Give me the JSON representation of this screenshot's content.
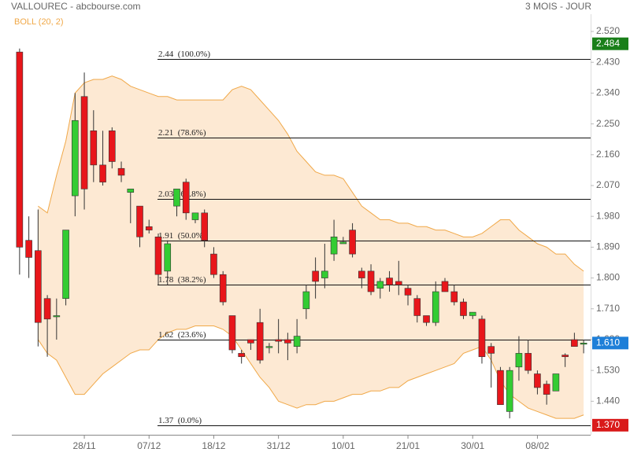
{
  "chart_data": {
    "type": "candlestick",
    "title": "VALLOUREC - abcbourse.com",
    "subtitle": "3 MOIS - JOUR",
    "indicator_label": "BOLL (20, 2)",
    "categories": [
      null,
      null,
      null,
      null,
      null,
      null,
      null,
      "28/11",
      null,
      null,
      null,
      null,
      null,
      null,
      "07/12",
      null,
      null,
      null,
      null,
      null,
      null,
      "18/12",
      null,
      null,
      null,
      null,
      null,
      null,
      "31/12",
      null,
      null,
      null,
      null,
      null,
      null,
      "10/01",
      null,
      null,
      null,
      null,
      null,
      null,
      "21/01",
      null,
      null,
      null,
      null,
      null,
      null,
      "30/01",
      null,
      null,
      null,
      null,
      null,
      null,
      "08/02",
      null,
      null,
      null,
      null,
      null
    ],
    "open": [
      2.46,
      1.91,
      1.88,
      1.74,
      1.69,
      1.74,
      2.04,
      2.33,
      2.23,
      2.13,
      2.23,
      2.12,
      2.05,
      2.01,
      1.95,
      1.92,
      1.82,
      2.01,
      2.08,
      1.97,
      1.99,
      1.87,
      1.81,
      1.69,
      1.58,
      1.62,
      1.67,
      1.597,
      1.62,
      1.62,
      1.6,
      1.71,
      1.82,
      1.8,
      1.87,
      1.9,
      1.94,
      1.82,
      1.82,
      1.77,
      1.8,
      1.79,
      1.77,
      1.74,
      1.69,
      1.67,
      1.79,
      1.76,
      1.73,
      1.69,
      1.68,
      1.6,
      1.53,
      1.41,
      1.54,
      1.58,
      1.52,
      1.49,
      1.47,
      1.575,
      1.62,
      1.61
    ],
    "high": [
      2.47,
      1.98,
      2.0,
      1.75,
      1.74,
      1.94,
      2.34,
      2.4,
      2.29,
      2.23,
      2.24,
      2.14,
      2.06,
      2.01,
      1.97,
      1.93,
      1.91,
      2.06,
      2.09,
      1.99,
      2.0,
      1.89,
      1.82,
      1.69,
      1.59,
      1.62,
      1.71,
      1.61,
      1.68,
      1.64,
      1.68,
      1.78,
      1.86,
      1.9,
      1.97,
      1.92,
      1.96,
      1.83,
      1.84,
      1.8,
      1.82,
      1.85,
      1.78,
      1.75,
      1.69,
      1.79,
      1.8,
      1.78,
      1.74,
      1.7,
      1.69,
      1.61,
      1.54,
      1.54,
      1.63,
      1.62,
      1.53,
      1.5,
      1.52,
      1.58,
      1.64,
      1.62
    ],
    "low": [
      1.81,
      1.8,
      1.6,
      1.57,
      1.62,
      1.72,
      1.98,
      2.0,
      2.08,
      2.07,
      2.12,
      2.08,
      1.96,
      1.89,
      1.93,
      1.78,
      1.78,
      1.98,
      1.97,
      1.96,
      1.89,
      1.8,
      1.72,
      1.58,
      1.55,
      1.59,
      1.55,
      1.58,
      1.58,
      1.56,
      1.58,
      1.68,
      1.74,
      1.77,
      1.85,
      1.9,
      1.86,
      1.77,
      1.75,
      1.74,
      1.76,
      1.75,
      1.72,
      1.67,
      1.66,
      1.66,
      1.76,
      1.72,
      1.68,
      1.68,
      1.55,
      1.48,
      1.43,
      1.39,
      1.5,
      1.52,
      1.46,
      1.43,
      1.47,
      1.54,
      1.6,
      1.58
    ],
    "close": [
      1.89,
      1.86,
      1.67,
      1.68,
      1.69,
      1.94,
      2.26,
      2.06,
      2.13,
      2.08,
      2.14,
      2.1,
      2.06,
      1.92,
      1.94,
      1.81,
      1.9,
      2.06,
      1.99,
      1.99,
      1.91,
      1.81,
      1.73,
      1.59,
      1.57,
      1.61,
      1.56,
      1.6,
      1.615,
      1.61,
      1.63,
      1.76,
      1.79,
      1.82,
      1.92,
      1.905,
      1.87,
      1.8,
      1.76,
      1.79,
      1.78,
      1.78,
      1.75,
      1.69,
      1.67,
      1.76,
      1.76,
      1.73,
      1.69,
      1.7,
      1.57,
      1.58,
      1.43,
      1.53,
      1.58,
      1.53,
      1.48,
      1.46,
      1.52,
      1.57,
      1.6,
      1.61
    ],
    "up_color": "#33cc33",
    "down_color": "#e8161b",
    "band_upper": [
      null,
      null,
      2.01,
      1.99,
      2.1,
      2.2,
      2.34,
      2.37,
      2.38,
      2.38,
      2.39,
      2.38,
      2.36,
      2.35,
      2.34,
      2.33,
      2.33,
      2.32,
      2.32,
      2.32,
      2.32,
      2.32,
      2.32,
      2.35,
      2.36,
      2.35,
      2.32,
      2.29,
      2.26,
      2.22,
      2.17,
      2.14,
      2.11,
      2.1,
      2.1,
      2.09,
      2.05,
      2.01,
      1.99,
      1.97,
      1.97,
      1.96,
      1.96,
      1.95,
      1.95,
      1.94,
      1.94,
      1.93,
      1.92,
      1.92,
      1.93,
      1.95,
      1.97,
      1.97,
      1.94,
      1.92,
      1.9,
      1.89,
      1.87,
      1.87,
      1.84,
      1.82
    ],
    "band_lower": [
      null,
      null,
      1.62,
      1.58,
      1.56,
      1.51,
      1.46,
      1.46,
      1.49,
      1.52,
      1.54,
      1.56,
      1.58,
      1.59,
      1.59,
      1.62,
      1.64,
      1.65,
      1.65,
      1.66,
      1.66,
      1.66,
      1.65,
      1.63,
      1.59,
      1.55,
      1.51,
      1.48,
      1.44,
      1.43,
      1.42,
      1.43,
      1.43,
      1.44,
      1.44,
      1.45,
      1.46,
      1.46,
      1.47,
      1.47,
      1.48,
      1.48,
      1.5,
      1.51,
      1.52,
      1.53,
      1.54,
      1.55,
      1.58,
      1.59,
      1.6,
      1.56,
      1.5,
      1.46,
      1.44,
      1.42,
      1.41,
      1.4,
      1.39,
      1.39,
      1.39,
      1.4
    ],
    "band_color": "#f0a848",
    "band_fill": "#fde9d3",
    "fib_levels": [
      {
        "value": 2.44,
        "label": "2.44  (100.0%)"
      },
      {
        "value": 2.21,
        "label": "2.21  (78.6%)"
      },
      {
        "value": 2.03,
        "label": "2.03  (61.8%)"
      },
      {
        "value": 1.91,
        "label": "1.91  (50.0%)"
      },
      {
        "value": 1.78,
        "label": "1.78  (38.2%)"
      },
      {
        "value": 1.62,
        "label": "1.62  (23.6%)"
      },
      {
        "value": 1.37,
        "label": "1.37  (0.0%)"
      }
    ],
    "price_badges": [
      {
        "value": 2.484,
        "label": "2.484",
        "color": "#1a7f1a"
      },
      {
        "value": 1.61,
        "label": "1.610",
        "color": "#1e7fd8"
      },
      {
        "value": 1.37,
        "label": "1.370",
        "color": "#d91a1a"
      }
    ],
    "ylim": [
      1.34,
      2.56
    ],
    "yticks": [
      {
        "value": 2.52,
        "label": "2.520"
      },
      {
        "value": 2.43,
        "label": "2.430"
      },
      {
        "value": 2.34,
        "label": "2.340"
      },
      {
        "value": 2.25,
        "label": "2.250"
      },
      {
        "value": 2.16,
        "label": "2.160"
      },
      {
        "value": 2.07,
        "label": "2.070"
      },
      {
        "value": 1.98,
        "label": "1.980"
      },
      {
        "value": 1.89,
        "label": "1.890"
      },
      {
        "value": 1.8,
        "label": "1.800"
      },
      {
        "value": 1.71,
        "label": "1.710"
      },
      {
        "value": 1.62,
        "label": "1.620"
      },
      {
        "value": 1.53,
        "label": "1.530"
      },
      {
        "value": 1.44,
        "label": "1.440"
      }
    ]
  }
}
